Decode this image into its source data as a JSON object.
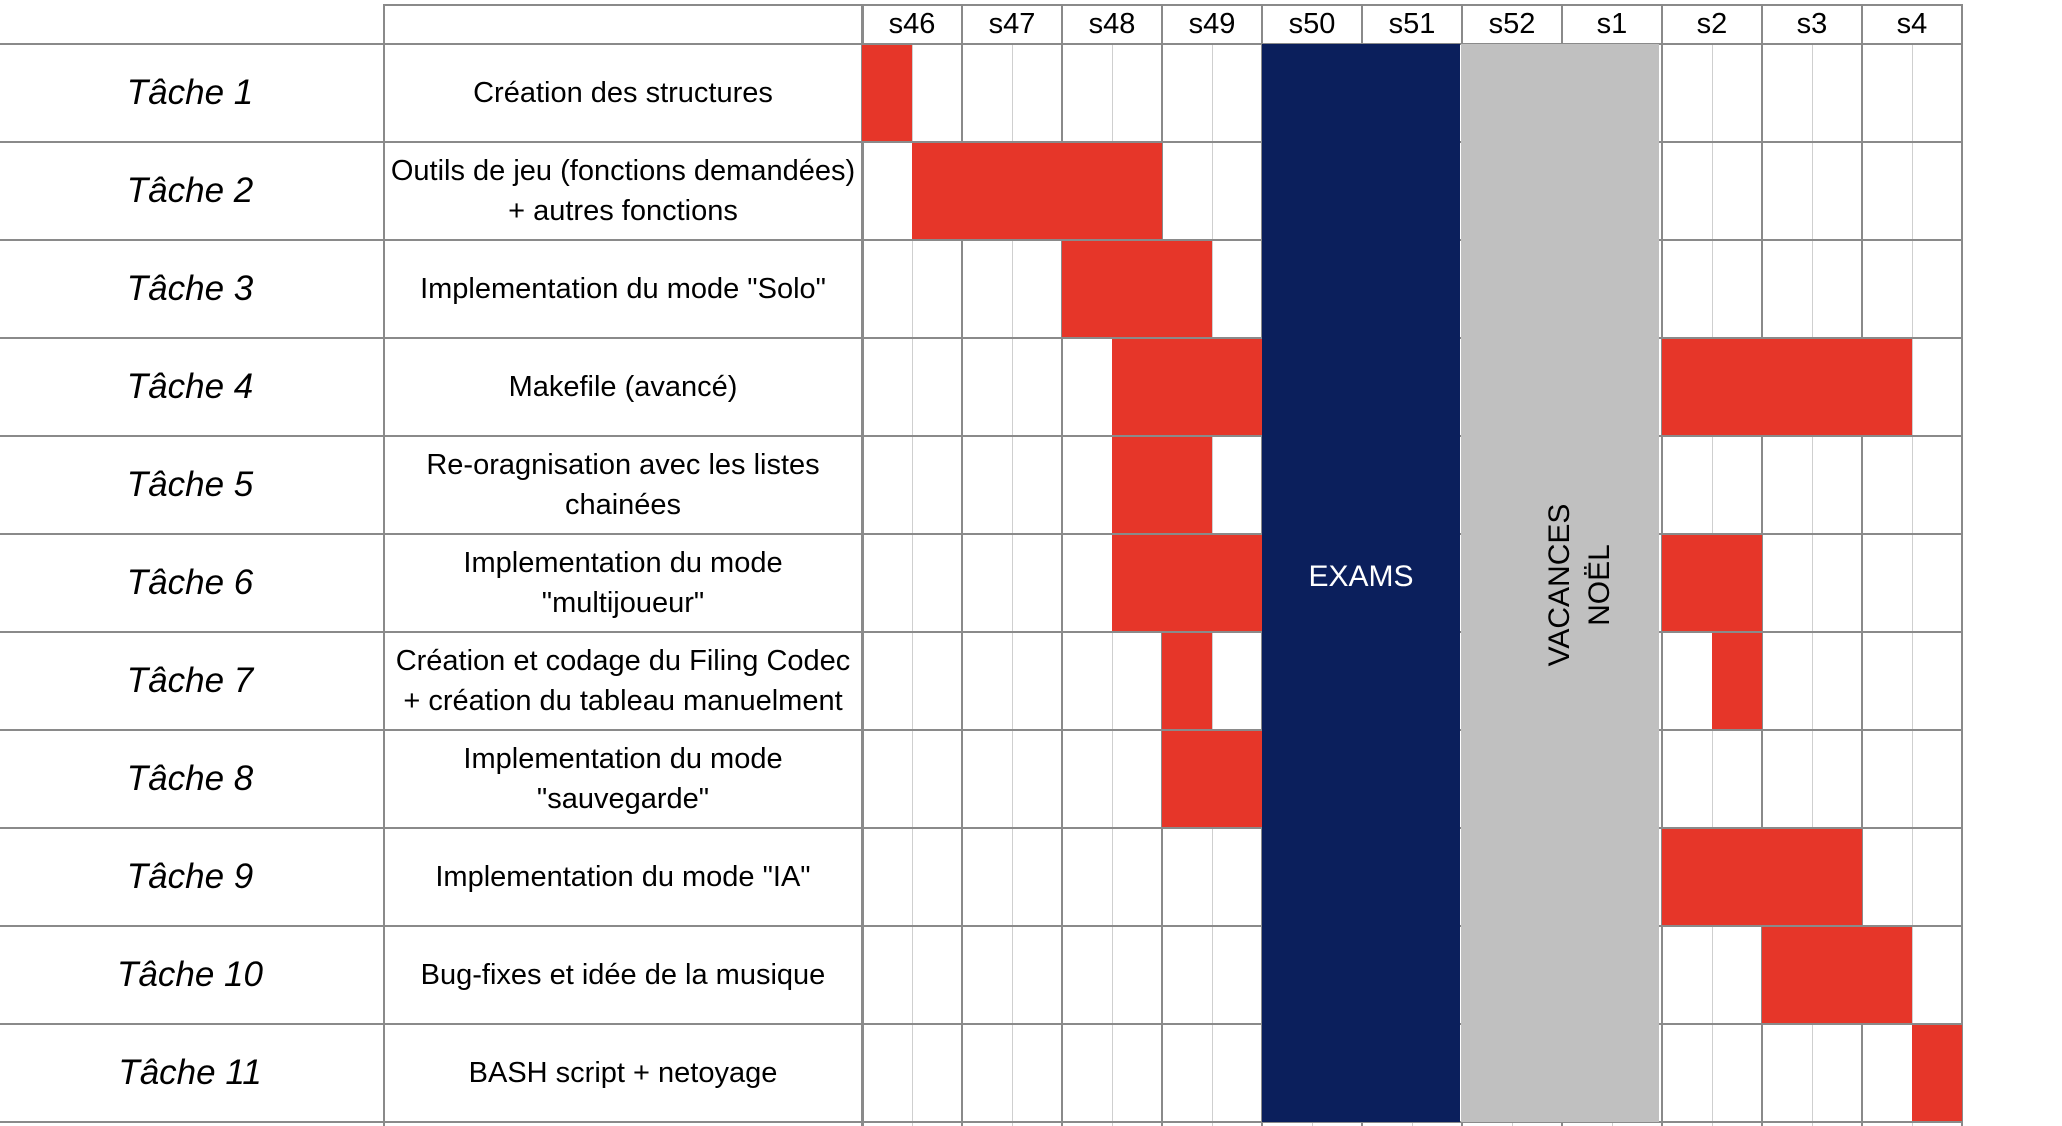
{
  "chart_data": {
    "type": "gantt",
    "weeks": [
      "s46",
      "s47",
      "s48",
      "s49",
      "s50",
      "s51",
      "s52",
      "s1",
      "s2",
      "s3",
      "s4"
    ],
    "blocks": [
      {
        "label": "EXAMS",
        "start_week": "s50",
        "end_week": "s51",
        "color": "#0b1f5c",
        "text_color": "#ffffff",
        "orientation": "horizontal"
      },
      {
        "label": "VACANCES NOËL",
        "start_week": "s52",
        "end_week": "s1",
        "color": "#c0c0c0",
        "text_color": "#000000",
        "orientation": "vertical"
      }
    ],
    "bar_color": "#e63629",
    "tasks": [
      {
        "name": "Tâche 1",
        "description": [
          "Création des structures"
        ],
        "bars": [
          [
            0,
            1
          ]
        ]
      },
      {
        "name": "Tâche 2",
        "description": [
          "Outils de jeu (fonctions demandées)",
          "+ autres fonctions"
        ],
        "bars": [
          [
            1,
            6
          ]
        ]
      },
      {
        "name": "Tâche 3",
        "description": [
          "Implementation du mode \"Solo\""
        ],
        "bars": [
          [
            4,
            7
          ]
        ]
      },
      {
        "name": "Tâche 4",
        "description": [
          "Makefile (avancé)"
        ],
        "bars": [
          [
            5,
            8
          ],
          [
            16,
            21
          ]
        ]
      },
      {
        "name": "Tâche 5",
        "description": [
          "Re-oragnisation avec les listes",
          "chainées"
        ],
        "bars": [
          [
            5,
            7
          ]
        ]
      },
      {
        "name": "Tâche 6",
        "description": [
          "Implementation du mode",
          "\"multijoueur\""
        ],
        "bars": [
          [
            5,
            8
          ],
          [
            16,
            18
          ]
        ]
      },
      {
        "name": "Tâche 7",
        "description": [
          "Création et codage du Filing Codec",
          "+ création du tableau manuelment"
        ],
        "bars": [
          [
            6,
            7
          ],
          [
            17,
            18
          ]
        ]
      },
      {
        "name": "Tâche 8",
        "description": [
          "Implementation du mode",
          "\"sauvegarde\""
        ],
        "bars": [
          [
            6,
            8
          ]
        ]
      },
      {
        "name": "Tâche 9",
        "description": [
          "Implementation du mode \"IA\""
        ],
        "bars": [
          [
            16,
            20
          ]
        ]
      },
      {
        "name": "Tâche 10",
        "description": [
          "Bug-fixes et idée de la musique"
        ],
        "bars": [
          [
            18,
            21
          ]
        ]
      },
      {
        "name": "Tâche 11",
        "description": [
          "BASH script + netoyage"
        ],
        "bars": [
          [
            21,
            22
          ]
        ]
      }
    ]
  }
}
